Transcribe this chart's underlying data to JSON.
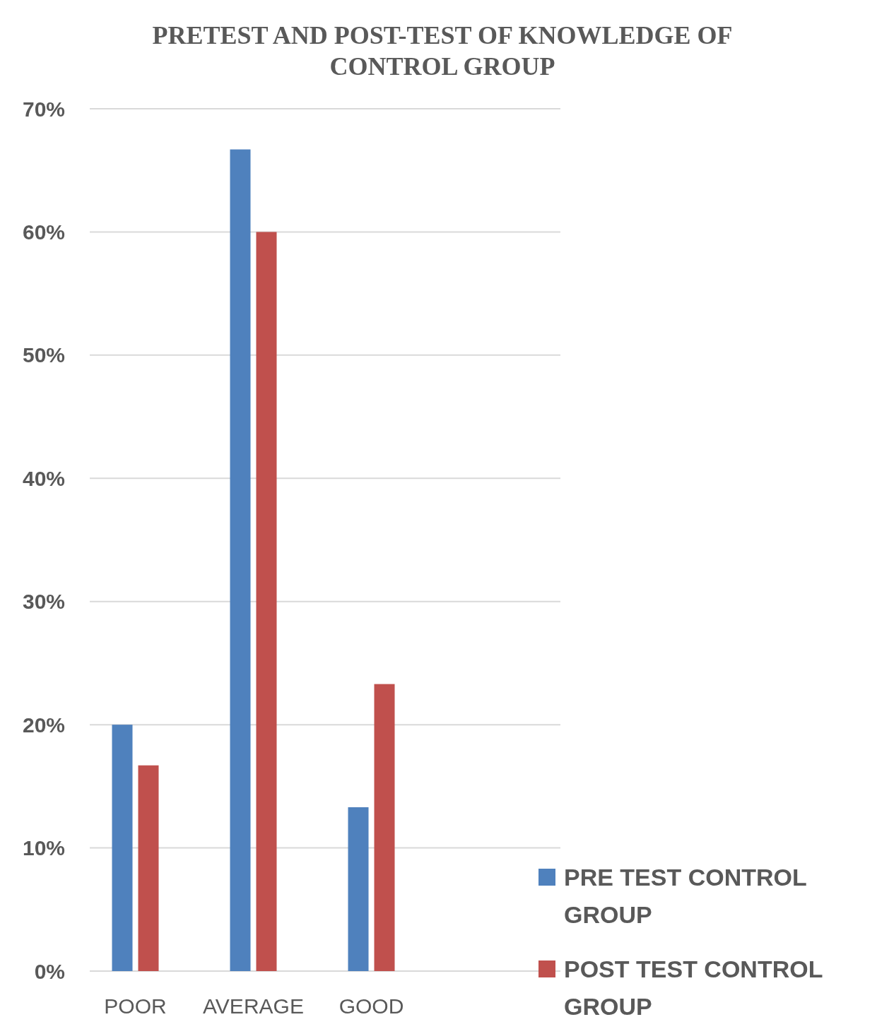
{
  "chart_data": {
    "type": "bar",
    "title": "PRETEST AND POST-TEST OF KNOWLEDGE OF CONTROL GROUP",
    "categories": [
      "POOR",
      "AVERAGE",
      "GOOD"
    ],
    "series": [
      {
        "name": "PRE TEST CONTROL GROUP",
        "color": "#4f81bd",
        "values": [
          20,
          66.7,
          13.3
        ]
      },
      {
        "name": "POST TEST CONTROL GROUP",
        "color": "#c0504d",
        "values": [
          16.7,
          60,
          23.3
        ]
      }
    ],
    "ylim": [
      0,
      70
    ],
    "yticks": [
      {
        "value": 0,
        "label": "0%"
      },
      {
        "value": 10,
        "label": "10%"
      },
      {
        "value": 20,
        "label": "20%"
      },
      {
        "value": 30,
        "label": "30%"
      },
      {
        "value": 40,
        "label": "40%"
      },
      {
        "value": 50,
        "label": "50%"
      },
      {
        "value": 60,
        "label": "60%"
      },
      {
        "value": 70,
        "label": "70%"
      }
    ],
    "grid": "y",
    "legend": "bottom right"
  }
}
